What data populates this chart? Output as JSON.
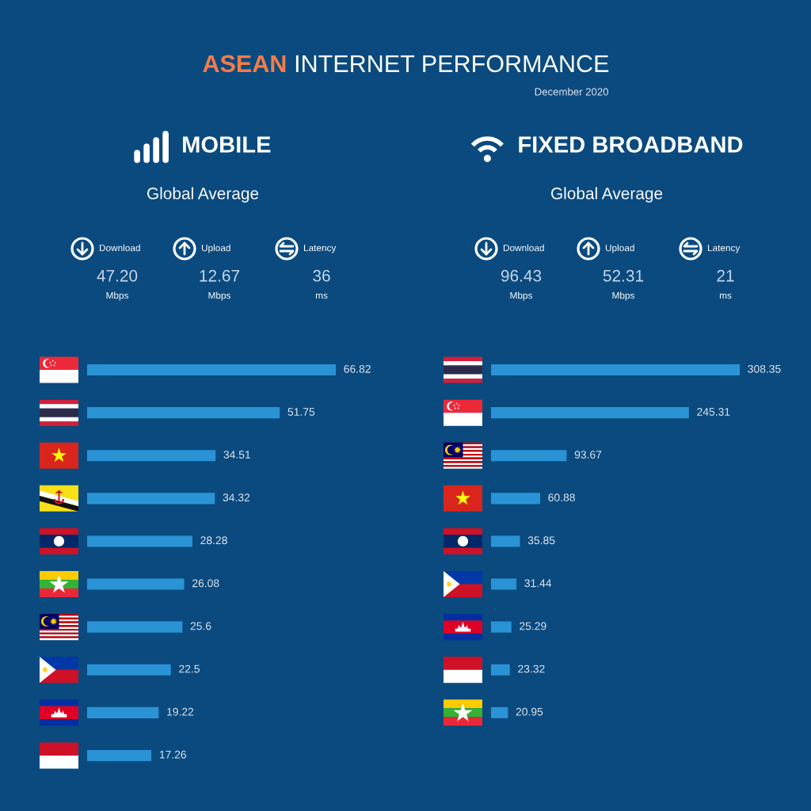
{
  "chart_data": [
    {
      "type": "other",
      "title": "ASEAN INTERNET PERFORMANCE",
      "subtitle": "December 2020"
    },
    {
      "type": "other",
      "title": "MOBILE",
      "subtitle": "Global Average",
      "annotations": [
        "Download",
        "47.20",
        "Mbps",
        "Upload",
        "12.67",
        "Mbps",
        "Latency",
        "36",
        "ms"
      ]
    },
    {
      "type": "bar",
      "orientation": "horizontal",
      "categories": [
        null,
        null,
        null,
        null,
        null,
        null,
        null,
        null,
        null,
        null
      ],
      "values": [
        66.82,
        51.75,
        34.51,
        34.32,
        28.28,
        26.08,
        25.6,
        22.5,
        19.22,
        17.26
      ],
      "color": "#2a93d6",
      "data_labels": true
    },
    {
      "type": "other",
      "title": "FIXED BROADBAND",
      "subtitle": "Global Average",
      "annotations": [
        "Download",
        "96.43",
        "Mbps",
        "Upload",
        "52.31",
        "Mbps",
        "Latency",
        "21",
        "ms"
      ]
    },
    {
      "type": "bar",
      "orientation": "horizontal",
      "categories": [
        null,
        null,
        null,
        null,
        null,
        null,
        null,
        null,
        null
      ],
      "values": [
        308.35,
        245.31,
        93.67,
        60.88,
        35.85,
        31.44,
        25.29,
        23.32,
        20.95
      ],
      "color": "#2a93d6",
      "data_labels": true
    }
  ]
}
